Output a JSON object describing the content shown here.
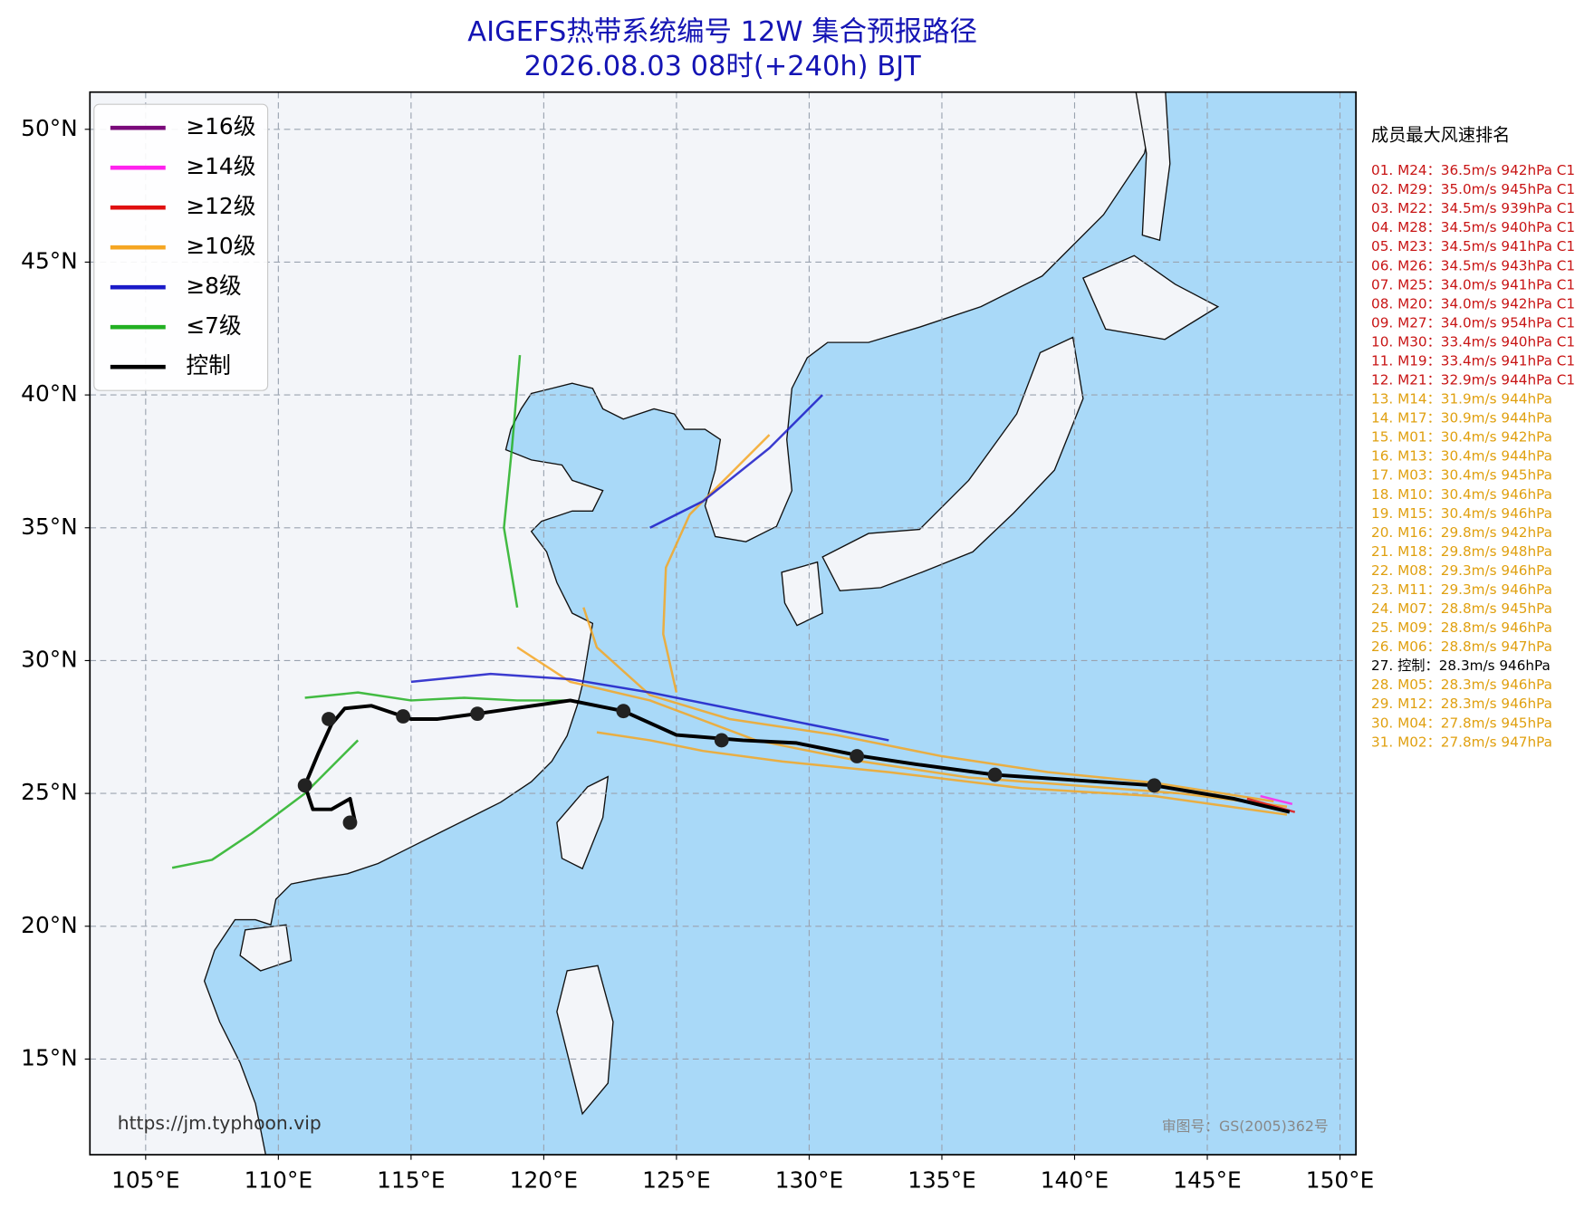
{
  "header": {
    "title": "AIGEFS热带系统编号 12W 集合预报路径",
    "subtitle": "2026.08.03 08时(+240h) BJT"
  },
  "map": {
    "lonlim": [
      102.9,
      150.6
    ],
    "latlim": [
      11.4,
      51.4
    ],
    "lon_ticks": [
      {
        "value": 105,
        "label": "105°E"
      },
      {
        "value": 110,
        "label": "110°E"
      },
      {
        "value": 115,
        "label": "115°E"
      },
      {
        "value": 120,
        "label": "120°E"
      },
      {
        "value": 125,
        "label": "125°E"
      },
      {
        "value": 130,
        "label": "130°E"
      },
      {
        "value": 135,
        "label": "135°E"
      },
      {
        "value": 140,
        "label": "140°E"
      },
      {
        "value": 145,
        "label": "145°E"
      },
      {
        "value": 150,
        "label": "150°E"
      }
    ],
    "lat_ticks": [
      {
        "value": 50,
        "label": "50°N"
      },
      {
        "value": 45,
        "label": "45°N"
      },
      {
        "value": 40,
        "label": "40°N"
      },
      {
        "value": 35,
        "label": "35°N"
      },
      {
        "value": 30,
        "label": "30°N"
      },
      {
        "value": 25,
        "label": "25°N"
      },
      {
        "value": 20,
        "label": "20°N"
      },
      {
        "value": 15,
        "label": "15°N"
      }
    ],
    "grid": true
  },
  "legend": [
    {
      "label": "≥16级",
      "color": "#7a0a7a"
    },
    {
      "label": "≥14级",
      "color": "#ff22ee"
    },
    {
      "label": "≥12级",
      "color": "#e01010"
    },
    {
      "label": "≥10级",
      "color": "#f5a623"
    },
    {
      "label": "≥8级",
      "color": "#1a1ac8"
    },
    {
      "label": "≤7级",
      "color": "#22b022"
    },
    {
      "label": "控制",
      "color": "#000000"
    }
  ],
  "tracks": [
    {
      "color": "#f5a623",
      "lon": [
        148,
        144,
        140,
        136,
        132,
        128,
        124,
        121,
        119
      ],
      "lat": [
        24.5,
        25.0,
        25.3,
        25.6,
        26.2,
        27.0,
        28.5,
        29.2,
        30.5
      ]
    },
    {
      "color": "#f5a623",
      "lon": [
        147.5,
        143,
        139,
        135,
        131,
        127,
        124,
        122,
        121.5
      ],
      "lat": [
        24.7,
        25.4,
        25.8,
        26.4,
        27.2,
        27.8,
        28.7,
        30.5,
        32
      ]
    },
    {
      "color": "#f5a623",
      "lon": [
        148,
        143,
        138,
        133,
        129,
        126,
        124,
        122
      ],
      "lat": [
        24.2,
        24.9,
        25.2,
        25.8,
        26.2,
        26.6,
        27.0,
        27.3
      ]
    },
    {
      "color": "#f5a623",
      "lon": [
        125,
        124.5,
        124.6,
        125.5,
        127,
        128.5
      ],
      "lat": [
        28.8,
        31,
        33.5,
        35.5,
        37,
        38.5
      ]
    },
    {
      "color": "#1a1ac8",
      "lon": [
        133,
        128,
        124,
        121,
        118,
        115
      ],
      "lat": [
        27,
        28,
        28.8,
        29.3,
        29.5,
        29.2
      ]
    },
    {
      "color": "#1a1ac8",
      "lon": [
        124,
        126,
        128.5,
        130.5
      ],
      "lat": [
        35,
        36,
        38,
        40
      ]
    },
    {
      "color": "#22b022",
      "lon": [
        121,
        119,
        117,
        115,
        113,
        111
      ],
      "lat": [
        28.5,
        28.5,
        28.6,
        28.5,
        28.8,
        28.6
      ]
    },
    {
      "color": "#22b022",
      "lon": [
        119,
        118.5,
        118.8,
        119.1
      ],
      "lat": [
        32,
        35,
        38,
        41.5
      ]
    },
    {
      "color": "#22b022",
      "lon": [
        113,
        111,
        109,
        107.5,
        106
      ],
      "lat": [
        27,
        25,
        23.5,
        22.5,
        22.2
      ]
    },
    {
      "color": "#e01010",
      "lon": [
        148.3,
        146.5
      ],
      "lat": [
        24.3,
        24.8
      ]
    },
    {
      "color": "#ff22ee",
      "lon": [
        148.2,
        147
      ],
      "lat": [
        24.6,
        24.9
      ]
    }
  ],
  "control_track": {
    "color": "#000000",
    "lon": [
      148.1,
      146.0,
      143.0,
      140.0,
      137.0,
      134.0,
      132.0,
      129.5,
      127.5,
      125.0,
      123.0,
      121.0,
      117.5,
      116.0,
      115.0,
      113.5,
      112.5,
      112.0,
      111.5,
      111.0,
      111.3,
      112.0,
      112.7,
      112.9
    ],
    "lat": [
      24.3,
      24.8,
      25.3,
      25.5,
      25.7,
      26.1,
      26.4,
      26.9,
      27.0,
      27.2,
      28.1,
      28.5,
      28.0,
      27.8,
      27.8,
      28.3,
      28.2,
      27.6,
      26.5,
      25.3,
      24.4,
      24.4,
      24.8,
      23.9
    ]
  },
  "control_dots": {
    "lon": [
      143.0,
      137.0,
      131.8,
      126.7,
      123.0,
      117.5,
      114.7,
      111.9,
      111.0,
      112.7
    ],
    "lat": [
      25.3,
      25.7,
      26.4,
      27.0,
      28.1,
      28.0,
      27.9,
      27.8,
      25.3,
      23.9
    ]
  },
  "ranking": {
    "title": "成员最大风速排名",
    "rows": [
      {
        "text": "01. M24：36.5m/s 942hPa C1",
        "color": "#c81414"
      },
      {
        "text": "02. M29：35.0m/s 945hPa C1",
        "color": "#c81414"
      },
      {
        "text": "03. M22：34.5m/s 939hPa C1",
        "color": "#c81414"
      },
      {
        "text": "04. M28：34.5m/s 940hPa C1",
        "color": "#c81414"
      },
      {
        "text": "05. M23：34.5m/s 941hPa C1",
        "color": "#c81414"
      },
      {
        "text": "06. M26：34.5m/s 943hPa C1",
        "color": "#c81414"
      },
      {
        "text": "07. M25：34.0m/s 941hPa C1",
        "color": "#c81414"
      },
      {
        "text": "08. M20：34.0m/s 942hPa C1",
        "color": "#c81414"
      },
      {
        "text": "09. M27：34.0m/s 954hPa C1",
        "color": "#c81414"
      },
      {
        "text": "10. M30：33.4m/s 940hPa C1",
        "color": "#c81414"
      },
      {
        "text": "11. M19：33.4m/s 941hPa C1",
        "color": "#c81414"
      },
      {
        "text": "12. M21：32.9m/s 944hPa C1",
        "color": "#c81414"
      },
      {
        "text": "13. M14：31.9m/s 944hPa",
        "color": "#e0a010"
      },
      {
        "text": "14. M17：30.9m/s 944hPa",
        "color": "#e0a010"
      },
      {
        "text": "15. M01：30.4m/s 942hPa",
        "color": "#e0a010"
      },
      {
        "text": "16. M13：30.4m/s 944hPa",
        "color": "#e0a010"
      },
      {
        "text": "17. M03：30.4m/s 945hPa",
        "color": "#e0a010"
      },
      {
        "text": "18. M10：30.4m/s 946hPa",
        "color": "#e0a010"
      },
      {
        "text": "19. M15：30.4m/s 946hPa",
        "color": "#e0a010"
      },
      {
        "text": "20. M16：29.8m/s 942hPa",
        "color": "#e0a010"
      },
      {
        "text": "21. M18：29.8m/s 948hPa",
        "color": "#e0a010"
      },
      {
        "text": "22. M08：29.3m/s 946hPa",
        "color": "#e0a010"
      },
      {
        "text": "23. M11：29.3m/s 946hPa",
        "color": "#e0a010"
      },
      {
        "text": "24. M07：28.8m/s 945hPa",
        "color": "#e0a010"
      },
      {
        "text": "25. M09：28.8m/s 946hPa",
        "color": "#e0a010"
      },
      {
        "text": "26. M06：28.8m/s 947hPa",
        "color": "#e0a010"
      },
      {
        "text": "27. 控制：28.3m/s 946hPa",
        "color": "#000000"
      },
      {
        "text": "28. M05：28.3m/s 946hPa",
        "color": "#e0a010"
      },
      {
        "text": "29. M12：28.3m/s 946hPa",
        "color": "#e0a010"
      },
      {
        "text": "30. M04：27.8m/s 945hPa",
        "color": "#e0a010"
      },
      {
        "text": "31. M02：27.8m/s 947hPa",
        "color": "#e0a010"
      }
    ]
  },
  "footer": {
    "source": "https://jm.typhoon.vip",
    "approval": "审图号：GS(2005)362号"
  }
}
